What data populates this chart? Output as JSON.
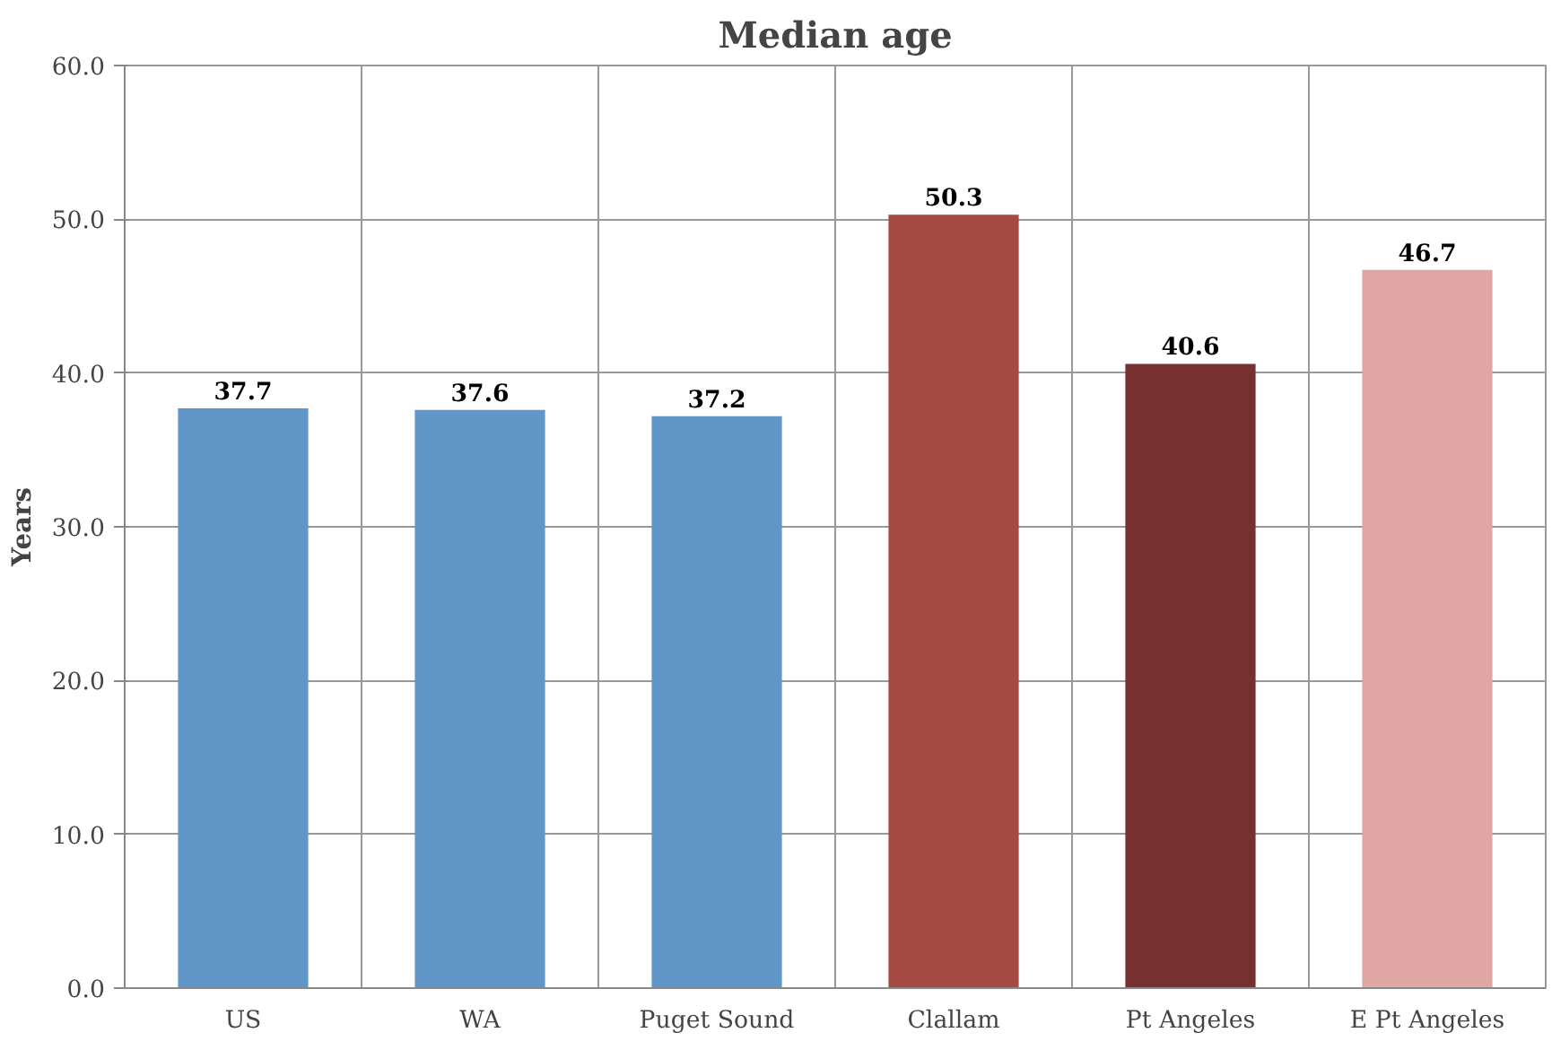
{
  "chart_data": {
    "type": "bar",
    "title": "Median age",
    "ylabel": "Years",
    "categories": [
      "US",
      "WA",
      "Puget Sound",
      "Clallam",
      "Pt Angeles",
      "E Pt Angeles"
    ],
    "values": [
      37.7,
      37.6,
      37.2,
      50.3,
      40.6,
      46.7
    ],
    "colors": [
      "#6196c9",
      "#6196c9",
      "#6196c9",
      "#a64b44",
      "#76302f",
      "#e0a6a4"
    ],
    "ylim": [
      0,
      60
    ],
    "yticks": [
      {
        "value": 0,
        "label": "0.0"
      },
      {
        "value": 10,
        "label": "10.0"
      },
      {
        "value": 20,
        "label": "20.0"
      },
      {
        "value": 30,
        "label": "30.0"
      },
      {
        "value": 40,
        "label": "40.0"
      },
      {
        "value": 50,
        "label": "50.0"
      },
      {
        "value": 60,
        "label": "60.0"
      }
    ],
    "grid": true,
    "data_labels": true
  }
}
